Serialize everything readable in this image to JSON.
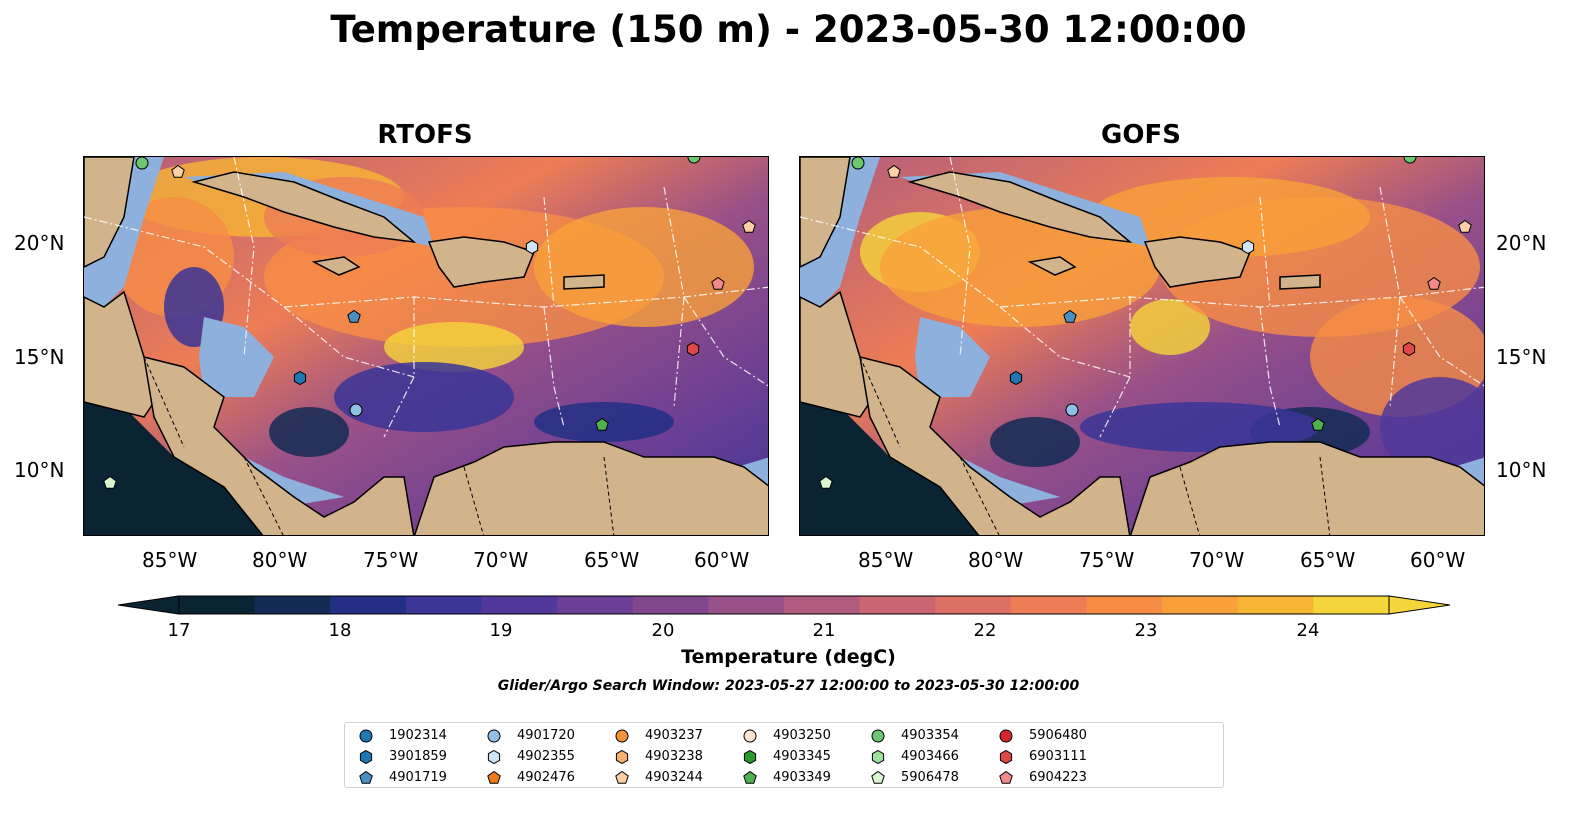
{
  "title": "Temperature (150 m) - 2023-05-30 12:00:00",
  "panels": [
    {
      "title": "RTOFS"
    },
    {
      "title": "GOFS"
    }
  ],
  "axes": {
    "lat_labels": [
      "20°N",
      "15°N",
      "10°N"
    ],
    "lon_labels": [
      "85°W",
      "80°W",
      "75°W",
      "70°W",
      "65°W",
      "60°W"
    ]
  },
  "colorbar": {
    "label": "Temperature (degC)",
    "ticks": [
      "17",
      "18",
      "19",
      "20",
      "21",
      "22",
      "23",
      "24"
    ],
    "range": [
      17,
      24.5
    ],
    "colors": [
      "#0b2433",
      "#132b55",
      "#222f84",
      "#3a3596",
      "#51389a",
      "#693e94",
      "#80478d",
      "#985088",
      "#b15c7e",
      "#c96672",
      "#dd7064",
      "#ed7d55",
      "#f78d45",
      "#f9a03a",
      "#f7b535",
      "#f5d63a"
    ]
  },
  "search_window": "Glider/Argo Search Window: 2023-05-27 12:00:00 to 2023-05-30 12:00:00",
  "legend": [
    {
      "id": "1902314",
      "shape": "circle",
      "color": "#1f77b4"
    },
    {
      "id": "3901859",
      "shape": "hexagon",
      "color": "#1f77b4"
    },
    {
      "id": "4901719",
      "shape": "pentagon",
      "color": "#4a90c4"
    },
    {
      "id": "4901720",
      "shape": "circle",
      "color": "#8fc1e6"
    },
    {
      "id": "4902355",
      "shape": "hexagon",
      "color": "#cfe6f7"
    },
    {
      "id": "4902476",
      "shape": "pentagon",
      "color": "#f07b1a"
    },
    {
      "id": "4903237",
      "shape": "circle",
      "color": "#f5923a"
    },
    {
      "id": "4903238",
      "shape": "hexagon",
      "color": "#f8b070"
    },
    {
      "id": "4903244",
      "shape": "pentagon",
      "color": "#fbd0a6"
    },
    {
      "id": "4903250",
      "shape": "circle",
      "color": "#fde6d3"
    },
    {
      "id": "4903345",
      "shape": "hexagon",
      "color": "#2a9a2a"
    },
    {
      "id": "4903349",
      "shape": "pentagon",
      "color": "#4fb04f"
    },
    {
      "id": "4903354",
      "shape": "circle",
      "color": "#6ec66e"
    },
    {
      "id": "4903466",
      "shape": "hexagon",
      "color": "#9fe09f"
    },
    {
      "id": "5906478",
      "shape": "pentagon",
      "color": "#d6f5d0"
    },
    {
      "id": "5906480",
      "shape": "circle",
      "color": "#d62728"
    },
    {
      "id": "6903111",
      "shape": "hexagon",
      "color": "#e04848"
    },
    {
      "id": "6904223",
      "shape": "pentagon",
      "color": "#f28a8a"
    }
  ]
}
